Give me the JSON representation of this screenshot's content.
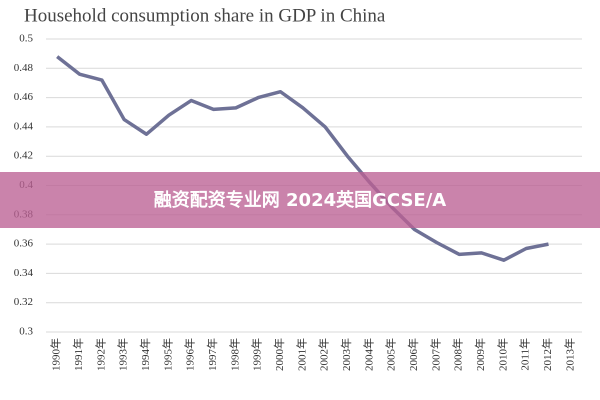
{
  "chart_data": {
    "type": "line",
    "title": "Household consumption share in GDP in China",
    "categories": [
      "1990年",
      "1991年",
      "1992年",
      "1993年",
      "1994年",
      "1995年",
      "1996年",
      "1997年",
      "1998年",
      "1999年",
      "2000年",
      "2001年",
      "2002年",
      "2003年",
      "2004年",
      "2005年",
      "2006年",
      "2007年",
      "2008年",
      "2009年",
      "2010年",
      "2011年",
      "2012年",
      "2013年"
    ],
    "series": [
      {
        "name": "Household consumption share",
        "color": "#6e7196",
        "values": [
          0.488,
          0.476,
          0.472,
          0.445,
          0.435,
          0.448,
          0.458,
          0.452,
          0.453,
          0.46,
          0.464,
          0.453,
          0.44,
          0.42,
          0.402,
          0.385,
          0.37,
          0.361,
          0.353,
          0.354,
          0.349,
          0.357,
          0.36,
          null
        ]
      }
    ],
    "ylim": [
      0.3,
      0.5
    ],
    "yticks": [
      0.3,
      0.32,
      0.34,
      0.36,
      0.38,
      0.4,
      0.42,
      0.44,
      0.46,
      0.48,
      0.5
    ],
    "grid": true
  },
  "banner": "融资配资专业网 2024英国GCSE/A"
}
